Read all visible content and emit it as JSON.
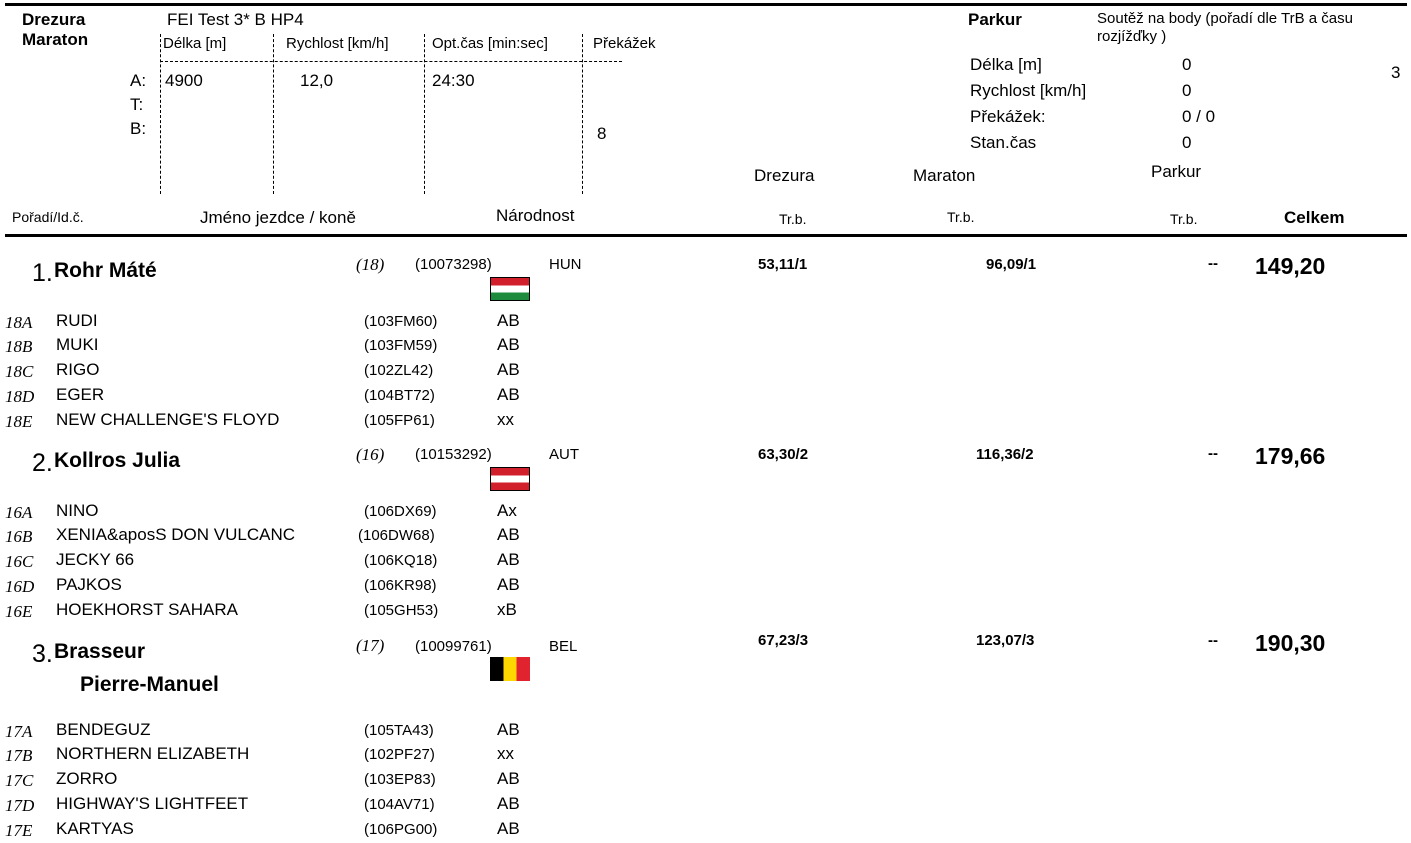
{
  "header": {
    "drezura_label": "Drezura",
    "maraton_label": "Maraton",
    "test_name": "FEI Test 3* B HP4",
    "col_delka": "Délka [m]",
    "col_rychlost": "Rychlost [km/h]",
    "col_optcas": "Opt.čas [min:sec]",
    "col_prekazek": "Překážek",
    "row_a": "A:",
    "row_t": "T:",
    "row_b": "B:",
    "a_delka": "4900",
    "a_rychlost": "12,0",
    "a_optcas": "24:30",
    "prekazek_value": "8",
    "parkur_label": "Parkur",
    "parkur_desc": "Soutěž na body (pořadí dle TrB a času rozjížďky )",
    "page_number": "3",
    "parkur_delka_label": "Délka [m]",
    "parkur_delka_value": "0",
    "parkur_rychlost_label": "Rychlost [km/h]",
    "parkur_rychlost_value": "0",
    "parkur_prekazek_label": "Překážek:",
    "parkur_prekazek_value": "0 / 0",
    "parkur_stancas_label": "Stan.čas",
    "parkur_stancas_value": "0",
    "col_drezura": "Drezura",
    "col_maraton": "Maraton",
    "col_parkur": "Parkur"
  },
  "table_header": {
    "poradi": "Pořadí/Id.č.",
    "jmeno": "Jméno jezdce / koně",
    "narodnost": "Národnost",
    "trb1": "Tr.b.",
    "trb2": "Tr.b.",
    "trb3": "Tr.b.",
    "celkem": "Celkem"
  },
  "entries": [
    {
      "rank": "1.",
      "name": "Rohr Máté",
      "number": "(18)",
      "id": "(10073298)",
      "nation": "HUN",
      "drezura": "53,11/1",
      "maraton": "96,09/1",
      "parkur": "--",
      "total": "149,20",
      "horses": [
        {
          "code": "18A",
          "name": "RUDI",
          "id": "(103FM60)",
          "flag": "AB"
        },
        {
          "code": "18B",
          "name": "MUKI",
          "id": "(103FM59)",
          "flag": "AB"
        },
        {
          "code": "18C",
          "name": "RIGO",
          "id": "(102ZL42)",
          "flag": "AB"
        },
        {
          "code": "18D",
          "name": "EGER",
          "id": "(104BT72)",
          "flag": "AB"
        },
        {
          "code": "18E",
          "name": "NEW CHALLENGE'S FLOYD",
          "id": "(105FP61)",
          "flag": "xx"
        }
      ]
    },
    {
      "rank": "2.",
      "name": "Kollros Julia",
      "number": "(16)",
      "id": "(10153292)",
      "nation": "AUT",
      "drezura": "63,30/2",
      "maraton": "116,36/2",
      "parkur": "--",
      "total": "179,66",
      "horses": [
        {
          "code": "16A",
          "name": "NINO",
          "id": "(106DX69)",
          "flag": "Ax"
        },
        {
          "code": "16B",
          "name": "XENIA&aposS DON VULCANC",
          "id": "(106DW68)",
          "flag": "AB"
        },
        {
          "code": "16C",
          "name": "JECKY 66",
          "id": "(106KQ18)",
          "flag": "AB"
        },
        {
          "code": "16D",
          "name": "PAJKOS",
          "id": "(106KR98)",
          "flag": "AB"
        },
        {
          "code": "16E",
          "name": "HOEKHORST SAHARA",
          "id": "(105GH53)",
          "flag": "xB"
        }
      ]
    },
    {
      "rank": "3.",
      "name_line1": "Brasseur",
      "name_line2": "Pierre-Manuel",
      "number": "(17)",
      "id": "(10099761)",
      "nation": "BEL",
      "drezura": "67,23/3",
      "maraton": "123,07/3",
      "parkur": "--",
      "total": "190,30",
      "horses": [
        {
          "code": "17A",
          "name": "BENDEGUZ",
          "id": "(105TA43)",
          "flag": "AB"
        },
        {
          "code": "17B",
          "name": "NORTHERN ELIZABETH",
          "id": "(102PF27)",
          "flag": "xx"
        },
        {
          "code": "17C",
          "name": "ZORRO",
          "id": "(103EP83)",
          "flag": "AB"
        },
        {
          "code": "17D",
          "name": "HIGHWAY'S LIGHTFEET",
          "id": "(104AV71)",
          "flag": "AB"
        },
        {
          "code": "17E",
          "name": "KARTYAS",
          "id": "(106PG00)",
          "flag": "AB"
        }
      ]
    }
  ]
}
